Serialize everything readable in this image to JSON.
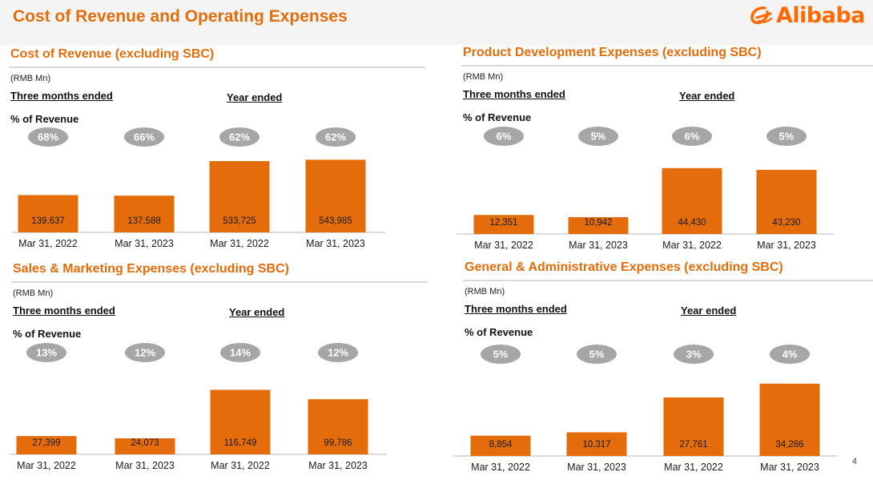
{
  "page": {
    "title": "Cost of Revenue and Operating Expenses",
    "page_number": "4"
  },
  "logo": {
    "text": "Alibaba",
    "color": "#ff6a00"
  },
  "colors": {
    "bar": "#e46c0a",
    "pill": "#a6a6a6",
    "title": "#e46c0a"
  },
  "chart_data": [
    {
      "type": "bar",
      "title": "Cost of Revenue (excluding SBC)",
      "unit": "(RMB Mn)",
      "group_labels": [
        "Three months ended",
        "Year ended"
      ],
      "pct_label": "% of Revenue",
      "categories": [
        "Mar 31, 2022",
        "Mar 31, 2023",
        "Mar 31, 2022",
        "Mar 31, 2023"
      ],
      "values": [
        139637,
        137588,
        533725,
        543985
      ],
      "value_labels": [
        "139,637",
        "137,588",
        "533,725",
        "543,985"
      ],
      "pct": [
        "68%",
        "66%",
        "62%",
        "62%"
      ],
      "scales": [
        3000,
        6000
      ]
    },
    {
      "type": "bar",
      "title": "Product Development Expenses (excluding SBC)",
      "unit": "(RMB Mn)",
      "group_labels": [
        "Three months ended",
        "Year ended"
      ],
      "pct_label": "% of Revenue",
      "categories": [
        "Mar 31, 2022",
        "Mar 31, 2023",
        "Mar 31, 2022",
        "Mar 31, 2023"
      ],
      "values": [
        12351,
        10942,
        44430,
        43230
      ],
      "value_labels": [
        "12,351",
        "10,942",
        "44,430",
        "43,230"
      ],
      "pct": [
        "6%",
        "5%",
        "6%",
        "5%"
      ],
      "scales": [
        520,
        540
      ]
    },
    {
      "type": "bar",
      "title": "Sales & Marketing Expenses (excluding SBC)",
      "unit": "(RMB Mn)",
      "group_labels": [
        "Three months ended",
        "Year ended"
      ],
      "pct_label": "% of Revenue",
      "categories": [
        "Mar 31, 2022",
        "Mar 31, 2023",
        "Mar 31, 2022",
        "Mar 31, 2023"
      ],
      "values": [
        27399,
        24073,
        116749,
        99786
      ],
      "value_labels": [
        "27,399",
        "24,073",
        "116,749",
        "99,786"
      ],
      "pct": [
        "13%",
        "12%",
        "14%",
        "12%"
      ],
      "scales": [
        1200,
        1450
      ]
    },
    {
      "type": "bar",
      "title": "General & Administrative Expenses (excluding SBC)",
      "unit": "(RMB Mn)",
      "group_labels": [
        "Three months ended",
        "Year ended"
      ],
      "pct_label": "% of Revenue",
      "categories": [
        "Mar 31, 2022",
        "Mar 31, 2023",
        "Mar 31, 2022",
        "Mar 31, 2023"
      ],
      "values": [
        8854,
        10317,
        27761,
        34286
      ],
      "value_labels": [
        "8,854",
        "10,317",
        "27,761",
        "34,286"
      ],
      "pct": [
        "5%",
        "5%",
        "3%",
        "4%"
      ],
      "scales": [
        350,
        380
      ]
    }
  ]
}
